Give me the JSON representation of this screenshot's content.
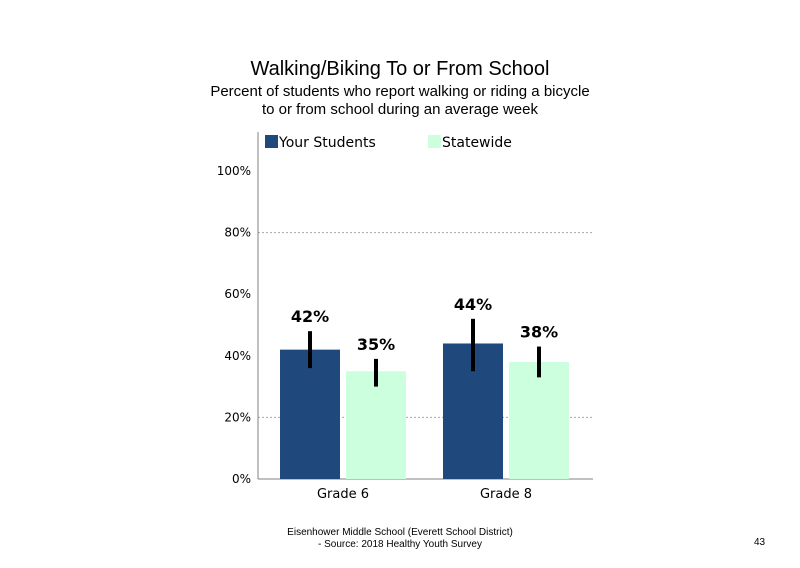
{
  "chart_data": {
    "type": "bar",
    "title": "Walking/Biking  To or From School",
    "subtitle": [
      "Percent of students  who report walking  or riding a bicycle",
      "to or from school during an average week"
    ],
    "categories": [
      "Grade 6",
      "Grade 8"
    ],
    "series": [
      {
        "name": "Your Students",
        "values": [
          42,
          44
        ],
        "labels": [
          "42%",
          "44%"
        ],
        "ci": [
          [
            36,
            48
          ],
          [
            35,
            52
          ]
        ],
        "color": "#1f497d"
      },
      {
        "name": "Statewide",
        "values": [
          35,
          38
        ],
        "labels": [
          "35%",
          "38%"
        ],
        "ci": [
          [
            30,
            39
          ],
          [
            33,
            43
          ]
        ],
        "color": "#ccffdd"
      }
    ],
    "ylim": [
      0,
      100
    ],
    "yticks": [
      "0%",
      "20%",
      "40%",
      "60%",
      "80%",
      "100%"
    ],
    "gridlines": "dotted at 20% and 80%",
    "legend": "top",
    "errorbar_color": "#000000"
  },
  "footer": {
    "line1": "Eisenhower Middle School (Everett School District)",
    "line2": "- Source: 2018 Healthy  Youth Survey"
  },
  "page_number": "43"
}
